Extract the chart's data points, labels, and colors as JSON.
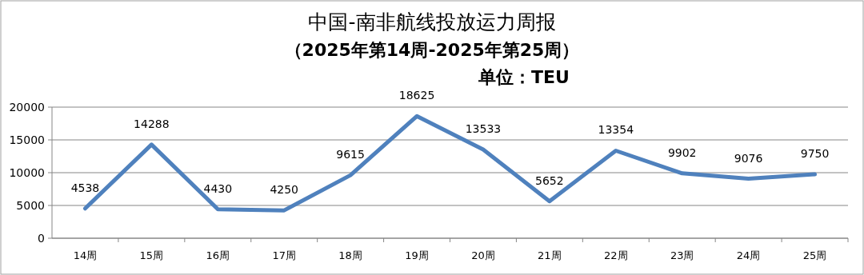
{
  "chart_data": {
    "type": "line",
    "title": "中国-南非航线投放运力周报",
    "subtitle": "（2025年第14周-2025年第25周）",
    "annotations": [
      "单位：TEU"
    ],
    "categories": [
      "14周",
      "15周",
      "16周",
      "17周",
      "18周",
      "19周",
      "20周",
      "21周",
      "22周",
      "23周",
      "24周",
      "25周"
    ],
    "series": [
      {
        "color": "#4f81bd",
        "values": [
          4538,
          14288,
          4430,
          4250,
          9615,
          18625,
          13533,
          5652,
          13354,
          9902,
          9076,
          9750
        ]
      }
    ],
    "ylim": [
      0,
      20000
    ],
    "yticks": [
      0,
      5000,
      10000,
      15000,
      20000
    ],
    "grid": "y",
    "data_labels": true,
    "marker": "none",
    "line_style": "solid"
  }
}
